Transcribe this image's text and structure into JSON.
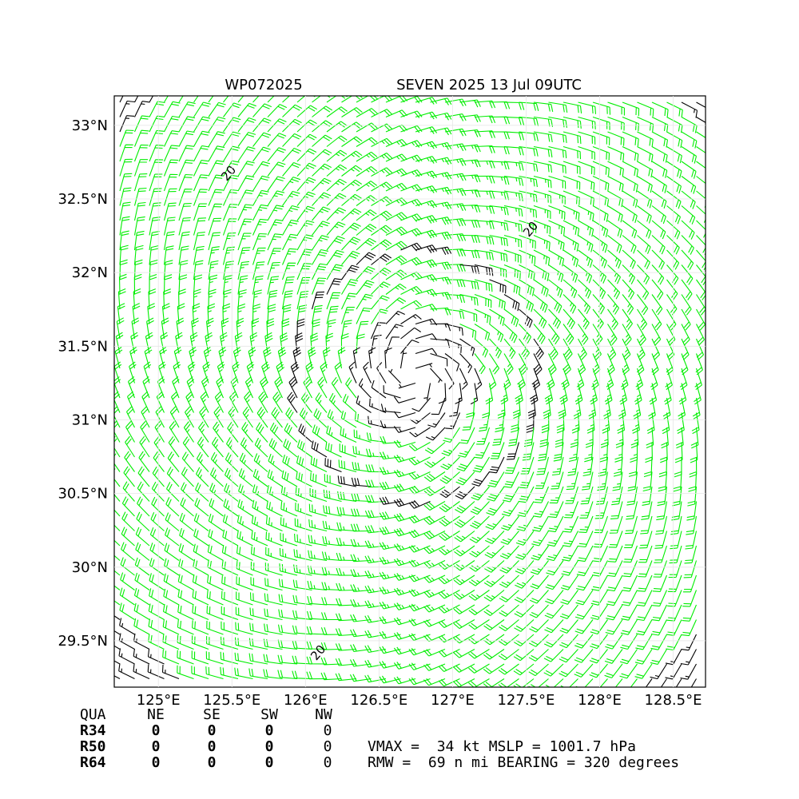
{
  "chart_data": {
    "type": "barbs",
    "title_left": "WP072025",
    "title_right": "SEVEN 2025 13 Jul 09UTC",
    "xlim": [
      124.7,
      128.72
    ],
    "ylim": [
      29.185,
      33.2
    ],
    "xticks": [
      {
        "value": 125,
        "label": "125°E"
      },
      {
        "value": 125.5,
        "label": "125.5°E"
      },
      {
        "value": 126,
        "label": "126°E"
      },
      {
        "value": 126.5,
        "label": "126.5°E"
      },
      {
        "value": 127,
        "label": "127°E"
      },
      {
        "value": 127.5,
        "label": "127.5°E"
      },
      {
        "value": 128,
        "label": "128°E"
      },
      {
        "value": 128.5,
        "label": "128.5°E"
      }
    ],
    "yticks": [
      {
        "value": 29.5,
        "label": "29.5°N"
      },
      {
        "value": 30,
        "label": "30°N"
      },
      {
        "value": 30.5,
        "label": "30.5°N"
      },
      {
        "value": 31,
        "label": "31°N"
      },
      {
        "value": 31.5,
        "label": "31.5°N"
      },
      {
        "value": 32,
        "label": "32°N"
      },
      {
        "value": 32.5,
        "label": "32.5°N"
      },
      {
        "value": 33,
        "label": "33°N"
      }
    ],
    "contour_labels": [
      "20",
      "20",
      "20"
    ],
    "radii_table": {
      "header": [
        "QUA",
        "NE",
        "SE",
        "SW",
        "NW"
      ],
      "rows": [
        [
          "R34",
          "0",
          "0",
          "0",
          "0"
        ],
        [
          "R50",
          "0",
          "0",
          "0",
          "0"
        ],
        [
          "R64",
          "0",
          "0",
          "0",
          "0"
        ]
      ]
    },
    "info_lines": [
      "VMAX =  34 kt MSLP = 1001.7 hPa",
      "RMW =  69 n mi BEARING = 320 degrees"
    ]
  }
}
